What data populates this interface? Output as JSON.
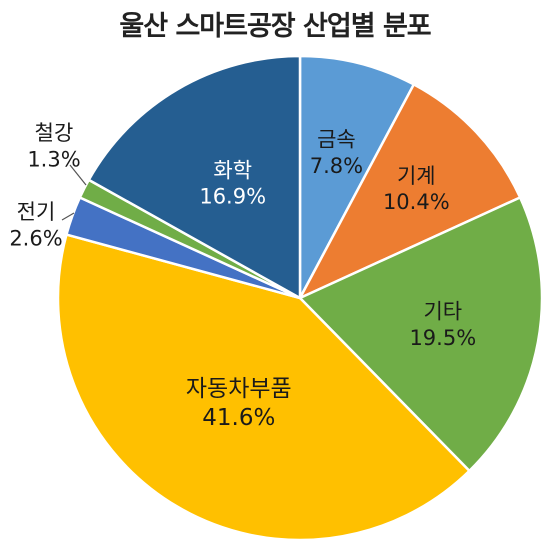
{
  "title": "울산 스마트공장 산업별 분포",
  "chart_data": {
    "type": "pie",
    "title": "울산 스마트공장 산업별 분포",
    "start_angle_deg": 0,
    "direction": "clockwise",
    "slices": [
      {
        "label": "금속",
        "value": 7.8,
        "display": "7.8%",
        "color": "#5b9bd5",
        "label_color": "#1a1a1a"
      },
      {
        "label": "기계",
        "value": 10.4,
        "display": "10.4%",
        "color": "#ed7d31",
        "label_color": "#1a1a1a"
      },
      {
        "label": "기타",
        "value": 19.5,
        "display": "19.5%",
        "color": "#70ad47",
        "label_color": "#1a1a1a"
      },
      {
        "label": "자동차부품",
        "value": 41.6,
        "display": "41.6%",
        "color": "#ffc000",
        "label_color": "#1a1a1a"
      },
      {
        "label": "전기",
        "value": 2.6,
        "display": "2.6%",
        "color": "#4472c4",
        "label_color": "#1a1a1a"
      },
      {
        "label": "철강",
        "value": 1.3,
        "display": "1.3%",
        "color": "#70ad47",
        "label_color": "#1a1a1a"
      },
      {
        "label": "화학",
        "value": 16.9,
        "display": "16.9%",
        "color": "#255e91",
        "label_color": "#ffffff"
      }
    ]
  }
}
